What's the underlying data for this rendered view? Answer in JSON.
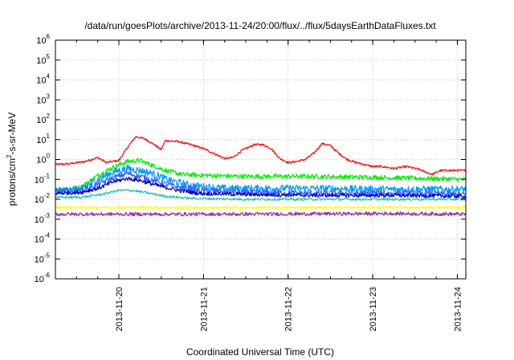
{
  "chart_data": {
    "type": "line",
    "title": "/data/run/goesPlots/archive/2013-11-24/20:00/flux/../flux/5daysEarthDataFluxes.txt",
    "xlabel": "Coordinated Universal Time (UTC)",
    "ylabel": "protons/cm²-s-sr-MeV",
    "y_scale": "log",
    "ylim_exponents": [
      -6,
      6
    ],
    "xlim_days": [
      "2013-11-19 06:00",
      "2013-11-24 20:00"
    ],
    "x_tick_labels": [
      "2013-11-20",
      "2013-11-21",
      "2013-11-22",
      "2013-11-23",
      "2013-11-24"
    ],
    "y_tick_base": "10",
    "y_tick_exponents": [
      "-6",
      "-5",
      "-4",
      "-3",
      "-2",
      "-1",
      "0",
      "1",
      "2",
      "3",
      "4",
      "5",
      "6"
    ],
    "grid": true,
    "legend": "none",
    "series": [
      {
        "color": "#ff0000",
        "noise": 0.05,
        "points": [
          [
            0.0,
            -0.25
          ],
          [
            0.15,
            -0.22
          ],
          [
            0.35,
            -0.1
          ],
          [
            0.5,
            0.1
          ],
          [
            0.6,
            -0.15
          ],
          [
            0.75,
            -0.05
          ],
          [
            0.85,
            0.6
          ],
          [
            0.95,
            1.15
          ],
          [
            1.05,
            1.05
          ],
          [
            1.15,
            0.8
          ],
          [
            1.25,
            0.5
          ],
          [
            1.3,
            0.95
          ],
          [
            1.45,
            0.9
          ],
          [
            1.6,
            0.75
          ],
          [
            1.75,
            0.55
          ],
          [
            1.9,
            0.25
          ],
          [
            2.0,
            0.05
          ],
          [
            2.1,
            0.1
          ],
          [
            2.2,
            0.45
          ],
          [
            2.35,
            0.75
          ],
          [
            2.45,
            0.75
          ],
          [
            2.55,
            0.55
          ],
          [
            2.65,
            0.05
          ],
          [
            2.75,
            -0.15
          ],
          [
            2.85,
            -0.1
          ],
          [
            2.95,
            0.0
          ],
          [
            3.05,
            0.3
          ],
          [
            3.15,
            0.8
          ],
          [
            3.25,
            0.7
          ],
          [
            3.35,
            0.3
          ],
          [
            3.45,
            0.0
          ],
          [
            3.55,
            -0.15
          ],
          [
            3.65,
            -0.25
          ],
          [
            3.75,
            -0.35
          ],
          [
            3.85,
            -0.35
          ],
          [
            4.0,
            -0.45
          ],
          [
            4.15,
            -0.35
          ],
          [
            4.3,
            -0.5
          ],
          [
            4.45,
            -0.75
          ],
          [
            4.55,
            -0.55
          ],
          [
            4.75,
            -0.55
          ],
          [
            4.85,
            -0.55
          ]
        ]
      },
      {
        "color": "#00ee00",
        "noise": 0.12,
        "points": [
          [
            0.0,
            -1.5
          ],
          [
            0.3,
            -1.4
          ],
          [
            0.5,
            -0.8
          ],
          [
            0.7,
            -0.35
          ],
          [
            0.85,
            -0.1
          ],
          [
            1.0,
            -0.05
          ],
          [
            1.15,
            -0.3
          ],
          [
            1.3,
            -0.55
          ],
          [
            1.5,
            -0.75
          ],
          [
            1.8,
            -0.8
          ],
          [
            2.2,
            -0.85
          ],
          [
            3.0,
            -0.85
          ],
          [
            3.8,
            -0.9
          ],
          [
            4.3,
            -0.95
          ],
          [
            4.85,
            -1.0
          ]
        ]
      },
      {
        "color": "#0099ff",
        "noise": 0.18,
        "points": [
          [
            0.0,
            -1.6
          ],
          [
            0.3,
            -1.5
          ],
          [
            0.5,
            -1.0
          ],
          [
            0.7,
            -0.6
          ],
          [
            0.85,
            -0.45
          ],
          [
            1.0,
            -0.55
          ],
          [
            1.15,
            -0.7
          ],
          [
            1.35,
            -1.05
          ],
          [
            1.6,
            -1.3
          ],
          [
            2.0,
            -1.45
          ],
          [
            3.0,
            -1.45
          ],
          [
            4.0,
            -1.5
          ],
          [
            4.85,
            -1.5
          ]
        ]
      },
      {
        "color": "#3366ff",
        "noise": 0.15,
        "points": [
          [
            0.0,
            -1.6
          ],
          [
            0.3,
            -1.55
          ],
          [
            0.5,
            -1.25
          ],
          [
            0.7,
            -0.9
          ],
          [
            0.85,
            -0.7
          ],
          [
            1.0,
            -0.85
          ],
          [
            1.2,
            -1.1
          ],
          [
            1.4,
            -1.35
          ],
          [
            1.7,
            -1.55
          ],
          [
            2.2,
            -1.65
          ],
          [
            3.0,
            -1.7
          ],
          [
            4.0,
            -1.7
          ],
          [
            4.85,
            -1.75
          ]
        ]
      },
      {
        "color": "#0000cc",
        "noise": 0.1,
        "points": [
          [
            0.0,
            -1.7
          ],
          [
            0.3,
            -1.65
          ],
          [
            0.5,
            -1.45
          ],
          [
            0.7,
            -1.1
          ],
          [
            0.85,
            -0.95
          ],
          [
            1.0,
            -1.05
          ],
          [
            1.2,
            -1.3
          ],
          [
            1.45,
            -1.55
          ],
          [
            1.7,
            -1.7
          ],
          [
            2.2,
            -1.75
          ],
          [
            3.0,
            -1.8
          ],
          [
            4.0,
            -1.8
          ],
          [
            4.85,
            -1.85
          ]
        ]
      },
      {
        "color": "#20c4b4",
        "noise": 0.06,
        "points": [
          [
            0.0,
            -1.9
          ],
          [
            0.3,
            -1.9
          ],
          [
            0.55,
            -1.75
          ],
          [
            0.75,
            -1.55
          ],
          [
            0.9,
            -1.55
          ],
          [
            1.05,
            -1.65
          ],
          [
            1.3,
            -1.85
          ],
          [
            1.6,
            -1.95
          ],
          [
            2.2,
            -2.0
          ],
          [
            3.5,
            -2.0
          ],
          [
            4.85,
            -2.0
          ]
        ]
      },
      {
        "color": "#ffff00",
        "noise": 0.06,
        "points": [
          [
            0.0,
            -2.4
          ],
          [
            2.0,
            -2.42
          ],
          [
            4.0,
            -2.4
          ],
          [
            4.85,
            -2.42
          ]
        ]
      },
      {
        "color": "#993399",
        "noise": 0.09,
        "points": [
          [
            0.0,
            -2.75
          ],
          [
            2.0,
            -2.75
          ],
          [
            4.0,
            -2.72
          ],
          [
            4.85,
            -2.75
          ]
        ]
      }
    ]
  }
}
